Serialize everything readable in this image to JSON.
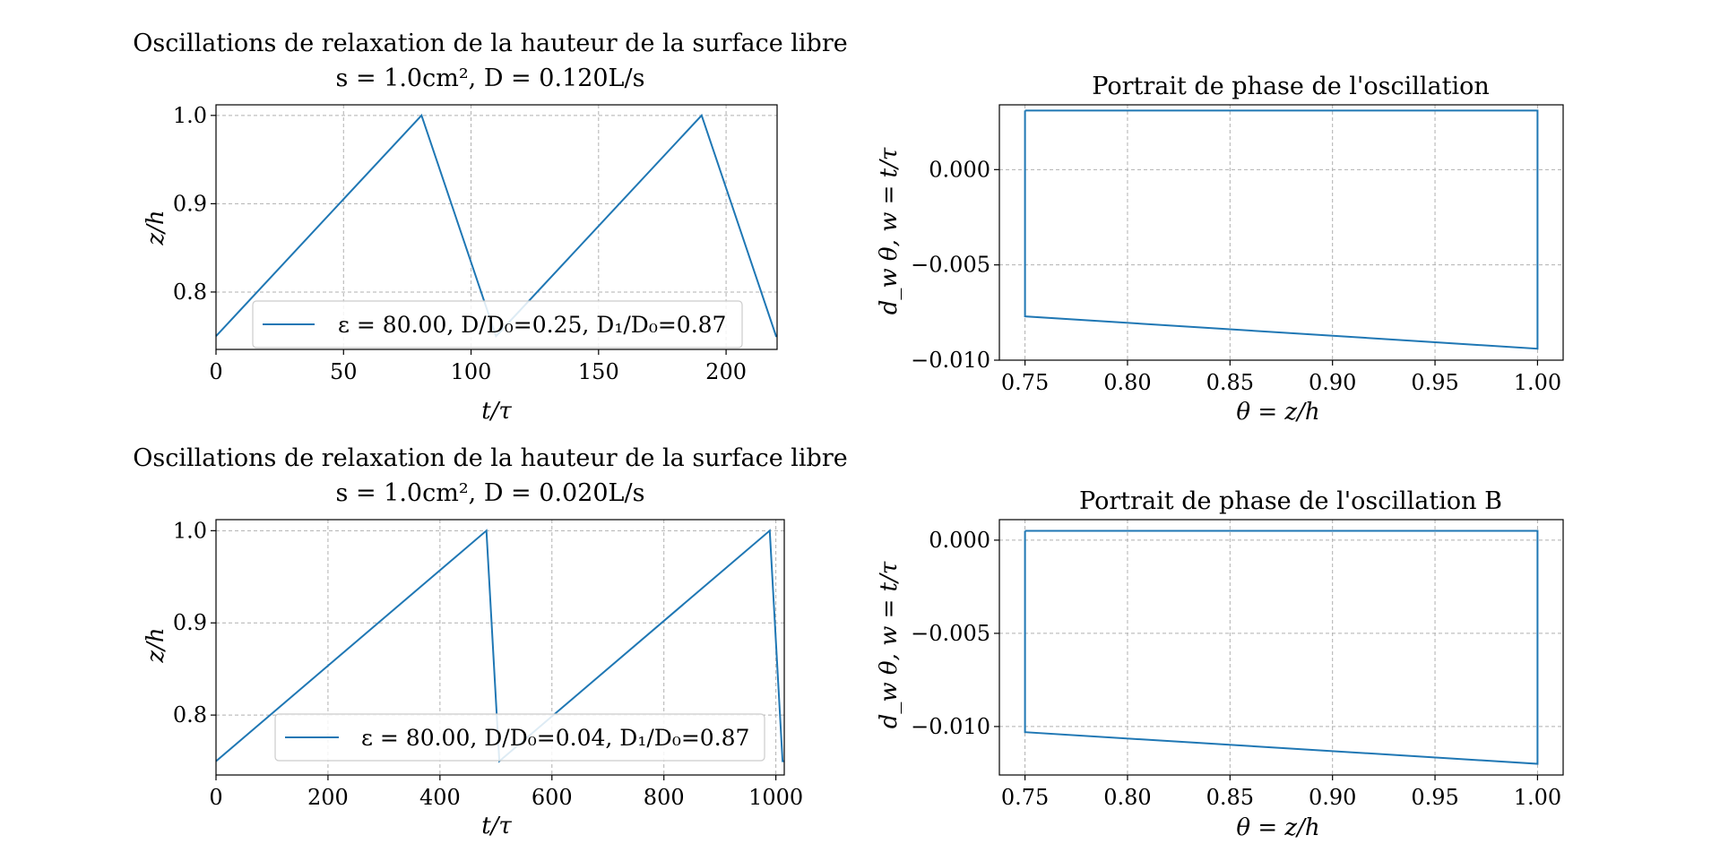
{
  "chart_data": [
    {
      "type": "line",
      "title_line1": "Oscillations de relaxation de la hauteur de la surface libre",
      "title_line2": "s = 1.0cm², D = 0.120L/s",
      "xlabel": "t/τ",
      "ylabel": "z/h",
      "xlim": [
        0,
        220
      ],
      "ylim": [
        0.735,
        1.012
      ],
      "xticks": [
        "0",
        "50",
        "100",
        "150",
        "200"
      ],
      "xtick_values": [
        0,
        50,
        100,
        150,
        200
      ],
      "yticks": [
        "0.8",
        "0.9",
        "1.0"
      ],
      "ytick_values": [
        0.8,
        0.9,
        1.0
      ],
      "grid": true,
      "color": "#1f77b4",
      "legend_position": "lower center",
      "legend": "ε = 80.00, D/D₀=0.25, D₁/D₀=0.87",
      "series": [
        {
          "x": [
            0,
            80.6,
            109.8,
            190.4,
            219.6,
            220
          ],
          "y": [
            0.75,
            1.0,
            0.75,
            1.0,
            0.75,
            0.75
          ]
        }
      ]
    },
    {
      "type": "line",
      "title": "Portrait de phase de l'oscillation",
      "xlabel": "θ = z/h",
      "ylabel": "d_w θ,   w = t/τ",
      "xlim": [
        0.7375,
        1.0125
      ],
      "ylim": [
        -0.01,
        0.0034
      ],
      "xticks": [
        "0.75",
        "0.80",
        "0.85",
        "0.90",
        "0.95",
        "1.00"
      ],
      "xtick_values": [
        0.75,
        0.8,
        0.85,
        0.9,
        0.95,
        1.0
      ],
      "yticks": [
        "−0.010",
        "−0.005",
        "0.000"
      ],
      "ytick_values": [
        -0.01,
        -0.005,
        0.0
      ],
      "grid": true,
      "color": "#1f77b4",
      "series": [
        {
          "x": [
            0.75,
            1.0,
            1.0,
            0.75,
            0.75
          ],
          "y": [
            0.0031,
            0.0031,
            -0.0094,
            -0.0077,
            0.0031
          ]
        }
      ]
    },
    {
      "type": "line",
      "title_line1": "Oscillations de relaxation de la hauteur de la surface libre",
      "title_line2": "s = 1.0cm², D = 0.020L/s",
      "xlabel": "t/τ",
      "ylabel": "z/h",
      "xlim": [
        0,
        1015
      ],
      "ylim": [
        0.735,
        1.012
      ],
      "xticks": [
        "0",
        "200",
        "400",
        "600",
        "800",
        "1000"
      ],
      "xtick_values": [
        0,
        200,
        400,
        600,
        800,
        1000
      ],
      "yticks": [
        "0.8",
        "0.9",
        "1.0"
      ],
      "ytick_values": [
        0.8,
        0.9,
        1.0
      ],
      "grid": true,
      "color": "#1f77b4",
      "legend_position": "lower center",
      "legend": "ε = 80.00, D/D₀=0.04, D₁/D₀=0.87",
      "series": [
        {
          "x": [
            0,
            483,
            506,
            989,
            1012,
            1015
          ],
          "y": [
            0.75,
            1.0,
            0.75,
            1.0,
            0.75,
            0.75
          ]
        }
      ]
    },
    {
      "type": "line",
      "title": "Portrait de phase de l'oscillation B",
      "xlabel": "θ = z/h",
      "ylabel": "d_w θ,   w = t/τ",
      "xlim": [
        0.7375,
        1.0125
      ],
      "ylim": [
        -0.0126,
        0.0011
      ],
      "xticks": [
        "0.75",
        "0.80",
        "0.85",
        "0.90",
        "0.95",
        "1.00"
      ],
      "xtick_values": [
        0.75,
        0.8,
        0.85,
        0.9,
        0.95,
        1.0
      ],
      "yticks": [
        "−0.010",
        "−0.005",
        "0.000"
      ],
      "ytick_values": [
        -0.01,
        -0.005,
        0.0
      ],
      "grid": true,
      "color": "#1f77b4",
      "series": [
        {
          "x": [
            0.75,
            1.0,
            1.0,
            0.75,
            0.75
          ],
          "y": [
            0.0005,
            0.0005,
            -0.012,
            -0.0103,
            0.0005
          ]
        }
      ]
    }
  ]
}
